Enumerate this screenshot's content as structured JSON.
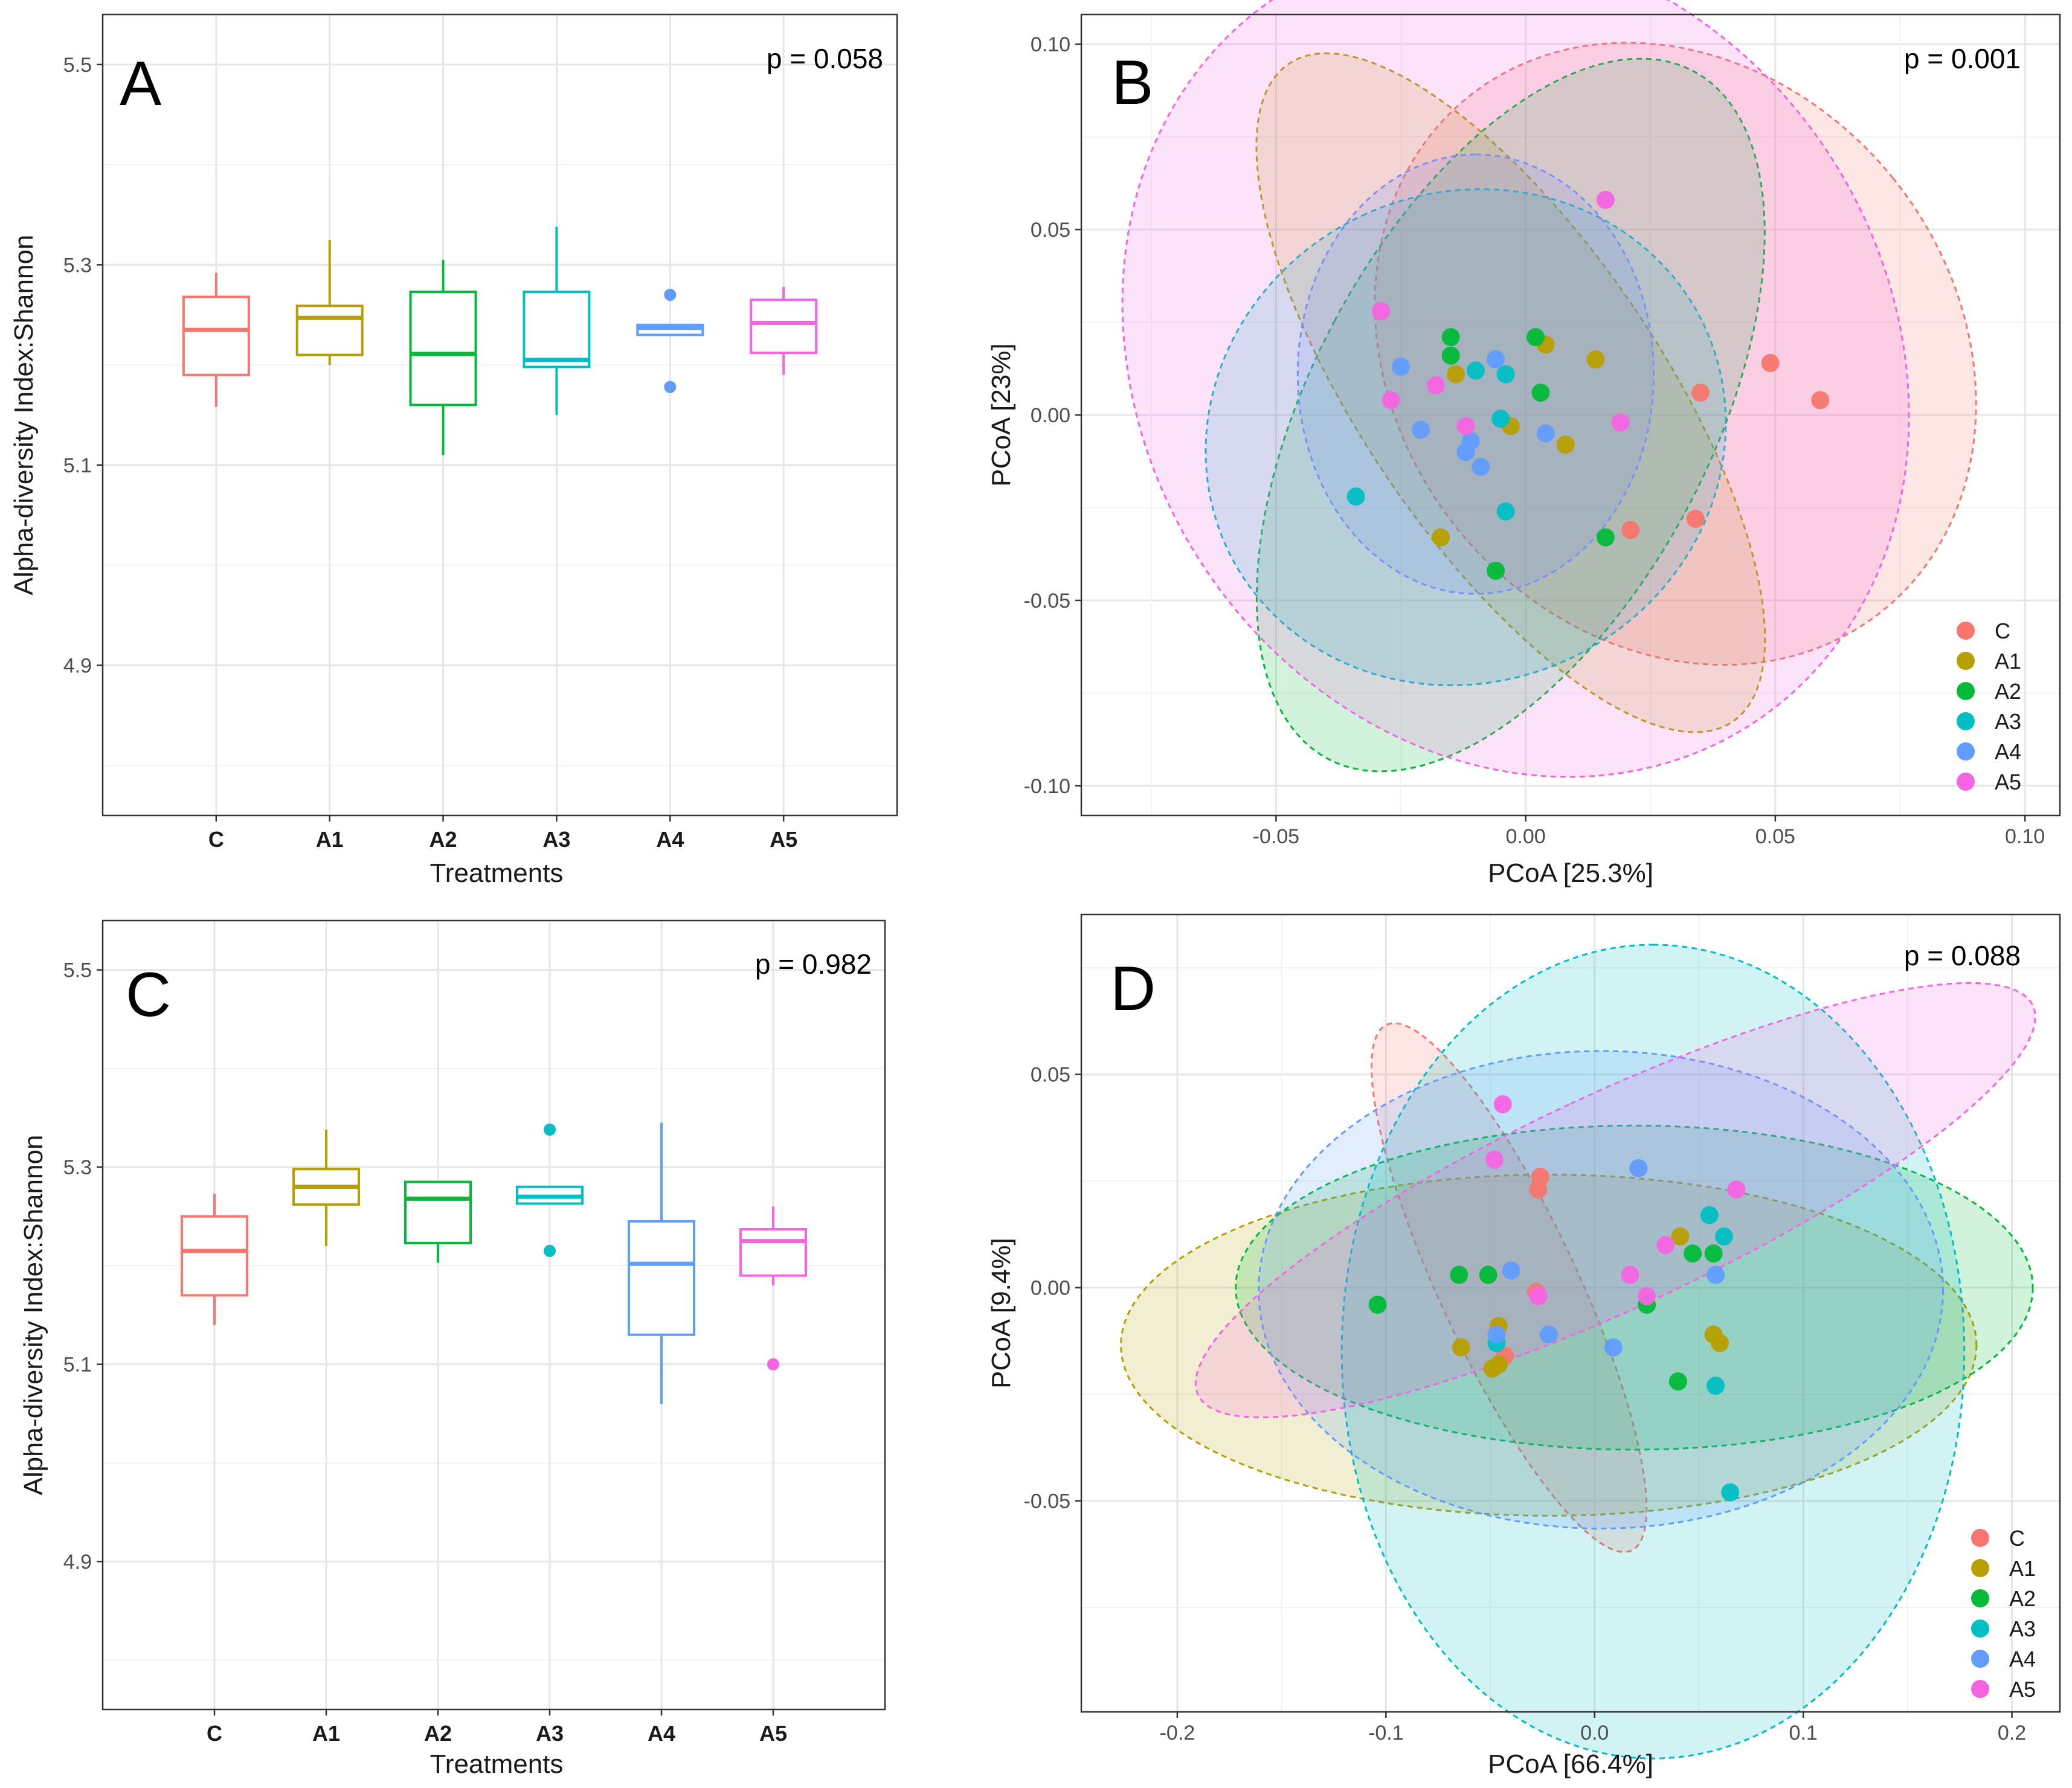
{
  "colors": {
    "C": "#F8766D",
    "A1": "#B79F00",
    "A2": "#00BA38",
    "A3": "#00BFC4",
    "A4": "#619CFF",
    "A5": "#F564E3"
  },
  "chart_data": [
    {
      "id": "A",
      "type": "box",
      "panel_letter": "A",
      "p_value": "p = 0.058",
      "xlabel": "Treatments",
      "ylabel": "Alpha-diversity Index:Shannon",
      "ylim": [
        4.75,
        5.55
      ],
      "yticks": [
        4.9,
        5.1,
        5.3,
        5.5
      ],
      "yticklabels": [
        "4.9",
        "5.1",
        "5.3",
        "5.5"
      ],
      "categories": [
        "C",
        "A1",
        "A2",
        "A3",
        "A4",
        "A5"
      ],
      "boxes": [
        {
          "group": "C",
          "wlow": 5.158,
          "q1": 5.19,
          "median": 5.235,
          "q3": 5.268,
          "whigh": 5.292,
          "outliers": []
        },
        {
          "group": "A1",
          "wlow": 5.2,
          "q1": 5.21,
          "median": 5.247,
          "q3": 5.259,
          "whigh": 5.325,
          "outliers": []
        },
        {
          "group": "A2",
          "wlow": 5.11,
          "q1": 5.16,
          "median": 5.211,
          "q3": 5.273,
          "whigh": 5.305,
          "outliers": []
        },
        {
          "group": "A3",
          "wlow": 5.15,
          "q1": 5.198,
          "median": 5.205,
          "q3": 5.273,
          "whigh": 5.338,
          "outliers": []
        },
        {
          "group": "A4",
          "wlow": 5.23,
          "q1": 5.23,
          "median": 5.237,
          "q3": 5.24,
          "whigh": 5.24,
          "outliers": [
            5.27,
            5.178
          ]
        },
        {
          "group": "A5",
          "wlow": 5.19,
          "q1": 5.212,
          "median": 5.242,
          "q3": 5.265,
          "whigh": 5.278,
          "outliers": []
        }
      ]
    },
    {
      "id": "B",
      "type": "scatter",
      "panel_letter": "B",
      "p_value": "p = 0.001",
      "xlabel": "PCoA [25.3%]",
      "ylabel": "PCoA [23%]",
      "xlim": [
        -0.089,
        0.107
      ],
      "ylim": [
        -0.108,
        0.108
      ],
      "xticks": [
        -0.05,
        0.0,
        0.05,
        0.1
      ],
      "xticklabels": [
        "-0.05",
        "0.00",
        "0.05",
        "0.10"
      ],
      "yticks": [
        -0.1,
        -0.05,
        0.0,
        0.05,
        0.1
      ],
      "yticklabels": [
        "-0.10",
        "-0.05",
        "0.00",
        "0.05",
        "0.10"
      ],
      "legend": [
        "C",
        "A1",
        "A2",
        "A3",
        "A4",
        "A5"
      ],
      "ellipses": [
        {
          "group": "C",
          "cx": 0.03,
          "cy": 0.0165,
          "rx": 0.056,
          "ry": 0.089,
          "angle": 39
        },
        {
          "group": "A1",
          "cx": -0.003,
          "cy": 0.006,
          "rx": 0.03,
          "ry": 0.107,
          "angle": 34
        },
        {
          "group": "A2",
          "cx": -0.003,
          "cy": 0.0,
          "rx": 0.04,
          "ry": 0.105,
          "angle": 152
        },
        {
          "group": "A3",
          "cx": -0.012,
          "cy": -0.006,
          "rx": 0.049,
          "ry": 0.071,
          "angle": 115
        },
        {
          "group": "A4",
          "cx": -0.01,
          "cy": 0.011,
          "rx": 0.044,
          "ry": 0.048,
          "angle": 90
        },
        {
          "group": "A5",
          "cx": -0.002,
          "cy": 0.015,
          "rx": 0.087,
          "ry": 0.101,
          "angle": 123
        }
      ],
      "series": [
        {
          "name": "C",
          "x": [
            0.035,
            0.049,
            0.059,
            0.021,
            0.034
          ],
          "y": [
            0.006,
            0.014,
            0.004,
            -0.031,
            -0.028
          ]
        },
        {
          "name": "A1",
          "x": [
            0.004,
            0.014,
            -0.003,
            -0.014,
            -0.017,
            0.008
          ],
          "y": [
            0.019,
            0.015,
            -0.003,
            0.011,
            -0.033,
            -0.008
          ]
        },
        {
          "name": "A2",
          "x": [
            -0.015,
            -0.015,
            0.002,
            0.003,
            -0.006,
            0.016
          ],
          "y": [
            0.021,
            0.016,
            0.021,
            0.006,
            -0.042,
            -0.033
          ]
        },
        {
          "name": "A3",
          "x": [
            -0.01,
            -0.004,
            -0.005,
            -0.034,
            -0.004
          ],
          "y": [
            0.012,
            0.011,
            -0.001,
            -0.022,
            -0.026
          ]
        },
        {
          "name": "A4",
          "x": [
            -0.025,
            -0.021,
            -0.006,
            -0.012,
            -0.009,
            0.004,
            -0.011
          ],
          "y": [
            0.013,
            -0.004,
            0.015,
            -0.01,
            -0.014,
            -0.005,
            -0.007
          ]
        },
        {
          "name": "A5",
          "x": [
            0.016,
            -0.029,
            -0.027,
            -0.018,
            -0.012,
            0.019
          ],
          "y": [
            0.058,
            0.028,
            0.004,
            0.008,
            -0.003,
            -0.002
          ]
        }
      ]
    },
    {
      "id": "C",
      "type": "box",
      "panel_letter": "C",
      "p_value": "p = 0.982",
      "xlabel": "Treatments",
      "ylabel": "Alpha-diversity Index:Shannon",
      "ylim": [
        4.75,
        5.55
      ],
      "yticks": [
        4.9,
        5.1,
        5.3,
        5.5
      ],
      "yticklabels": [
        "4.9",
        "5.1",
        "5.3",
        "5.5"
      ],
      "categories": [
        "C",
        "A1",
        "A2",
        "A3",
        "A4",
        "A5"
      ],
      "boxes": [
        {
          "group": "C",
          "wlow": 5.14,
          "q1": 5.17,
          "median": 5.215,
          "q3": 5.25,
          "whigh": 5.273,
          "outliers": []
        },
        {
          "group": "A1",
          "wlow": 5.22,
          "q1": 5.262,
          "median": 5.28,
          "q3": 5.298,
          "whigh": 5.338,
          "outliers": []
        },
        {
          "group": "A2",
          "wlow": 5.203,
          "q1": 5.223,
          "median": 5.268,
          "q3": 5.285,
          "whigh": 5.285,
          "outliers": []
        },
        {
          "group": "A3",
          "wlow": 5.263,
          "q1": 5.263,
          "median": 5.27,
          "q3": 5.28,
          "whigh": 5.28,
          "outliers": [
            5.338,
            5.215
          ]
        },
        {
          "group": "A4",
          "wlow": 5.06,
          "q1": 5.13,
          "median": 5.202,
          "q3": 5.245,
          "whigh": 5.345,
          "outliers": []
        },
        {
          "group": "A5",
          "wlow": 5.18,
          "q1": 5.19,
          "median": 5.225,
          "q3": 5.237,
          "whigh": 5.26,
          "outliers": [
            5.1
          ]
        }
      ]
    },
    {
      "id": "D",
      "type": "scatter",
      "panel_letter": "D",
      "p_value": "p = 0.088",
      "xlabel": "PCoA [66.4%]",
      "ylabel": "PCoA [9.4%]",
      "xlim": [
        -0.246,
        0.223
      ],
      "ylim": [
        -0.0995,
        0.0875
      ],
      "xticks": [
        -0.2,
        -0.1,
        0.0,
        0.1,
        0.2
      ],
      "xticklabels": [
        "-0.2",
        "-0.1",
        "0.0",
        "0.1",
        "0.2"
      ],
      "yticks": [
        -0.05,
        0.0,
        0.05
      ],
      "yticklabels": [
        "-0.05",
        "0.00",
        "0.05"
      ],
      "legend": [
        "C",
        "A1",
        "A2",
        "A3",
        "A4",
        "A5"
      ],
      "ellipses": [
        {
          "group": "C",
          "cx": -0.041,
          "cy": 0.0,
          "rx": 0.033,
          "ry": 0.068,
          "angle": 25
        },
        {
          "group": "A1",
          "cx": -0.022,
          "cy": -0.0135,
          "rx": 0.205,
          "ry": 0.04,
          "angle": 0
        },
        {
          "group": "A2",
          "cx": 0.019,
          "cy": 0.0,
          "rx": 0.191,
          "ry": 0.038,
          "angle": 0
        },
        {
          "group": "A3",
          "cx": 0.028,
          "cy": -0.015,
          "rx": 0.195,
          "ry": 0.073,
          "angle": 90
        },
        {
          "group": "A4",
          "cx": 0.003,
          "cy": -0.0005,
          "rx": 0.164,
          "ry": 0.056,
          "angle": 0
        },
        {
          "group": "A5",
          "cx": 0.01,
          "cy": 0.0205,
          "rx": 0.051,
          "ry": 0.108,
          "angle": 115
        }
      ],
      "series": [
        {
          "name": "C",
          "x": [
            -0.026,
            -0.027,
            -0.028,
            -0.043
          ],
          "y": [
            0.026,
            0.023,
            -0.001,
            -0.016
          ]
        },
        {
          "name": "A1",
          "x": [
            -0.046,
            -0.064,
            -0.049,
            -0.046,
            0.041,
            0.057,
            0.06
          ],
          "y": [
            -0.009,
            -0.014,
            -0.019,
            -0.018,
            0.012,
            -0.011,
            -0.013
          ]
        },
        {
          "name": "A2",
          "x": [
            -0.104,
            -0.065,
            -0.051,
            0.047,
            0.057,
            0.025,
            0.04
          ],
          "y": [
            -0.004,
            0.003,
            0.003,
            0.008,
            0.008,
            -0.004,
            -0.022
          ]
        },
        {
          "name": "A3",
          "x": [
            -0.047,
            0.055,
            0.062,
            0.058,
            0.065
          ],
          "y": [
            -0.013,
            0.017,
            0.012,
            -0.023,
            -0.048
          ]
        },
        {
          "name": "A4",
          "x": [
            -0.04,
            -0.047,
            -0.022,
            0.021,
            0.058,
            0.009
          ],
          "y": [
            0.004,
            -0.011,
            -0.011,
            0.028,
            0.003,
            -0.014
          ]
        },
        {
          "name": "A5",
          "x": [
            -0.044,
            -0.048,
            -0.027,
            0.017,
            0.034,
            0.068,
            0.025
          ],
          "y": [
            0.043,
            0.03,
            -0.002,
            0.003,
            0.01,
            0.023,
            -0.002
          ]
        }
      ]
    }
  ]
}
